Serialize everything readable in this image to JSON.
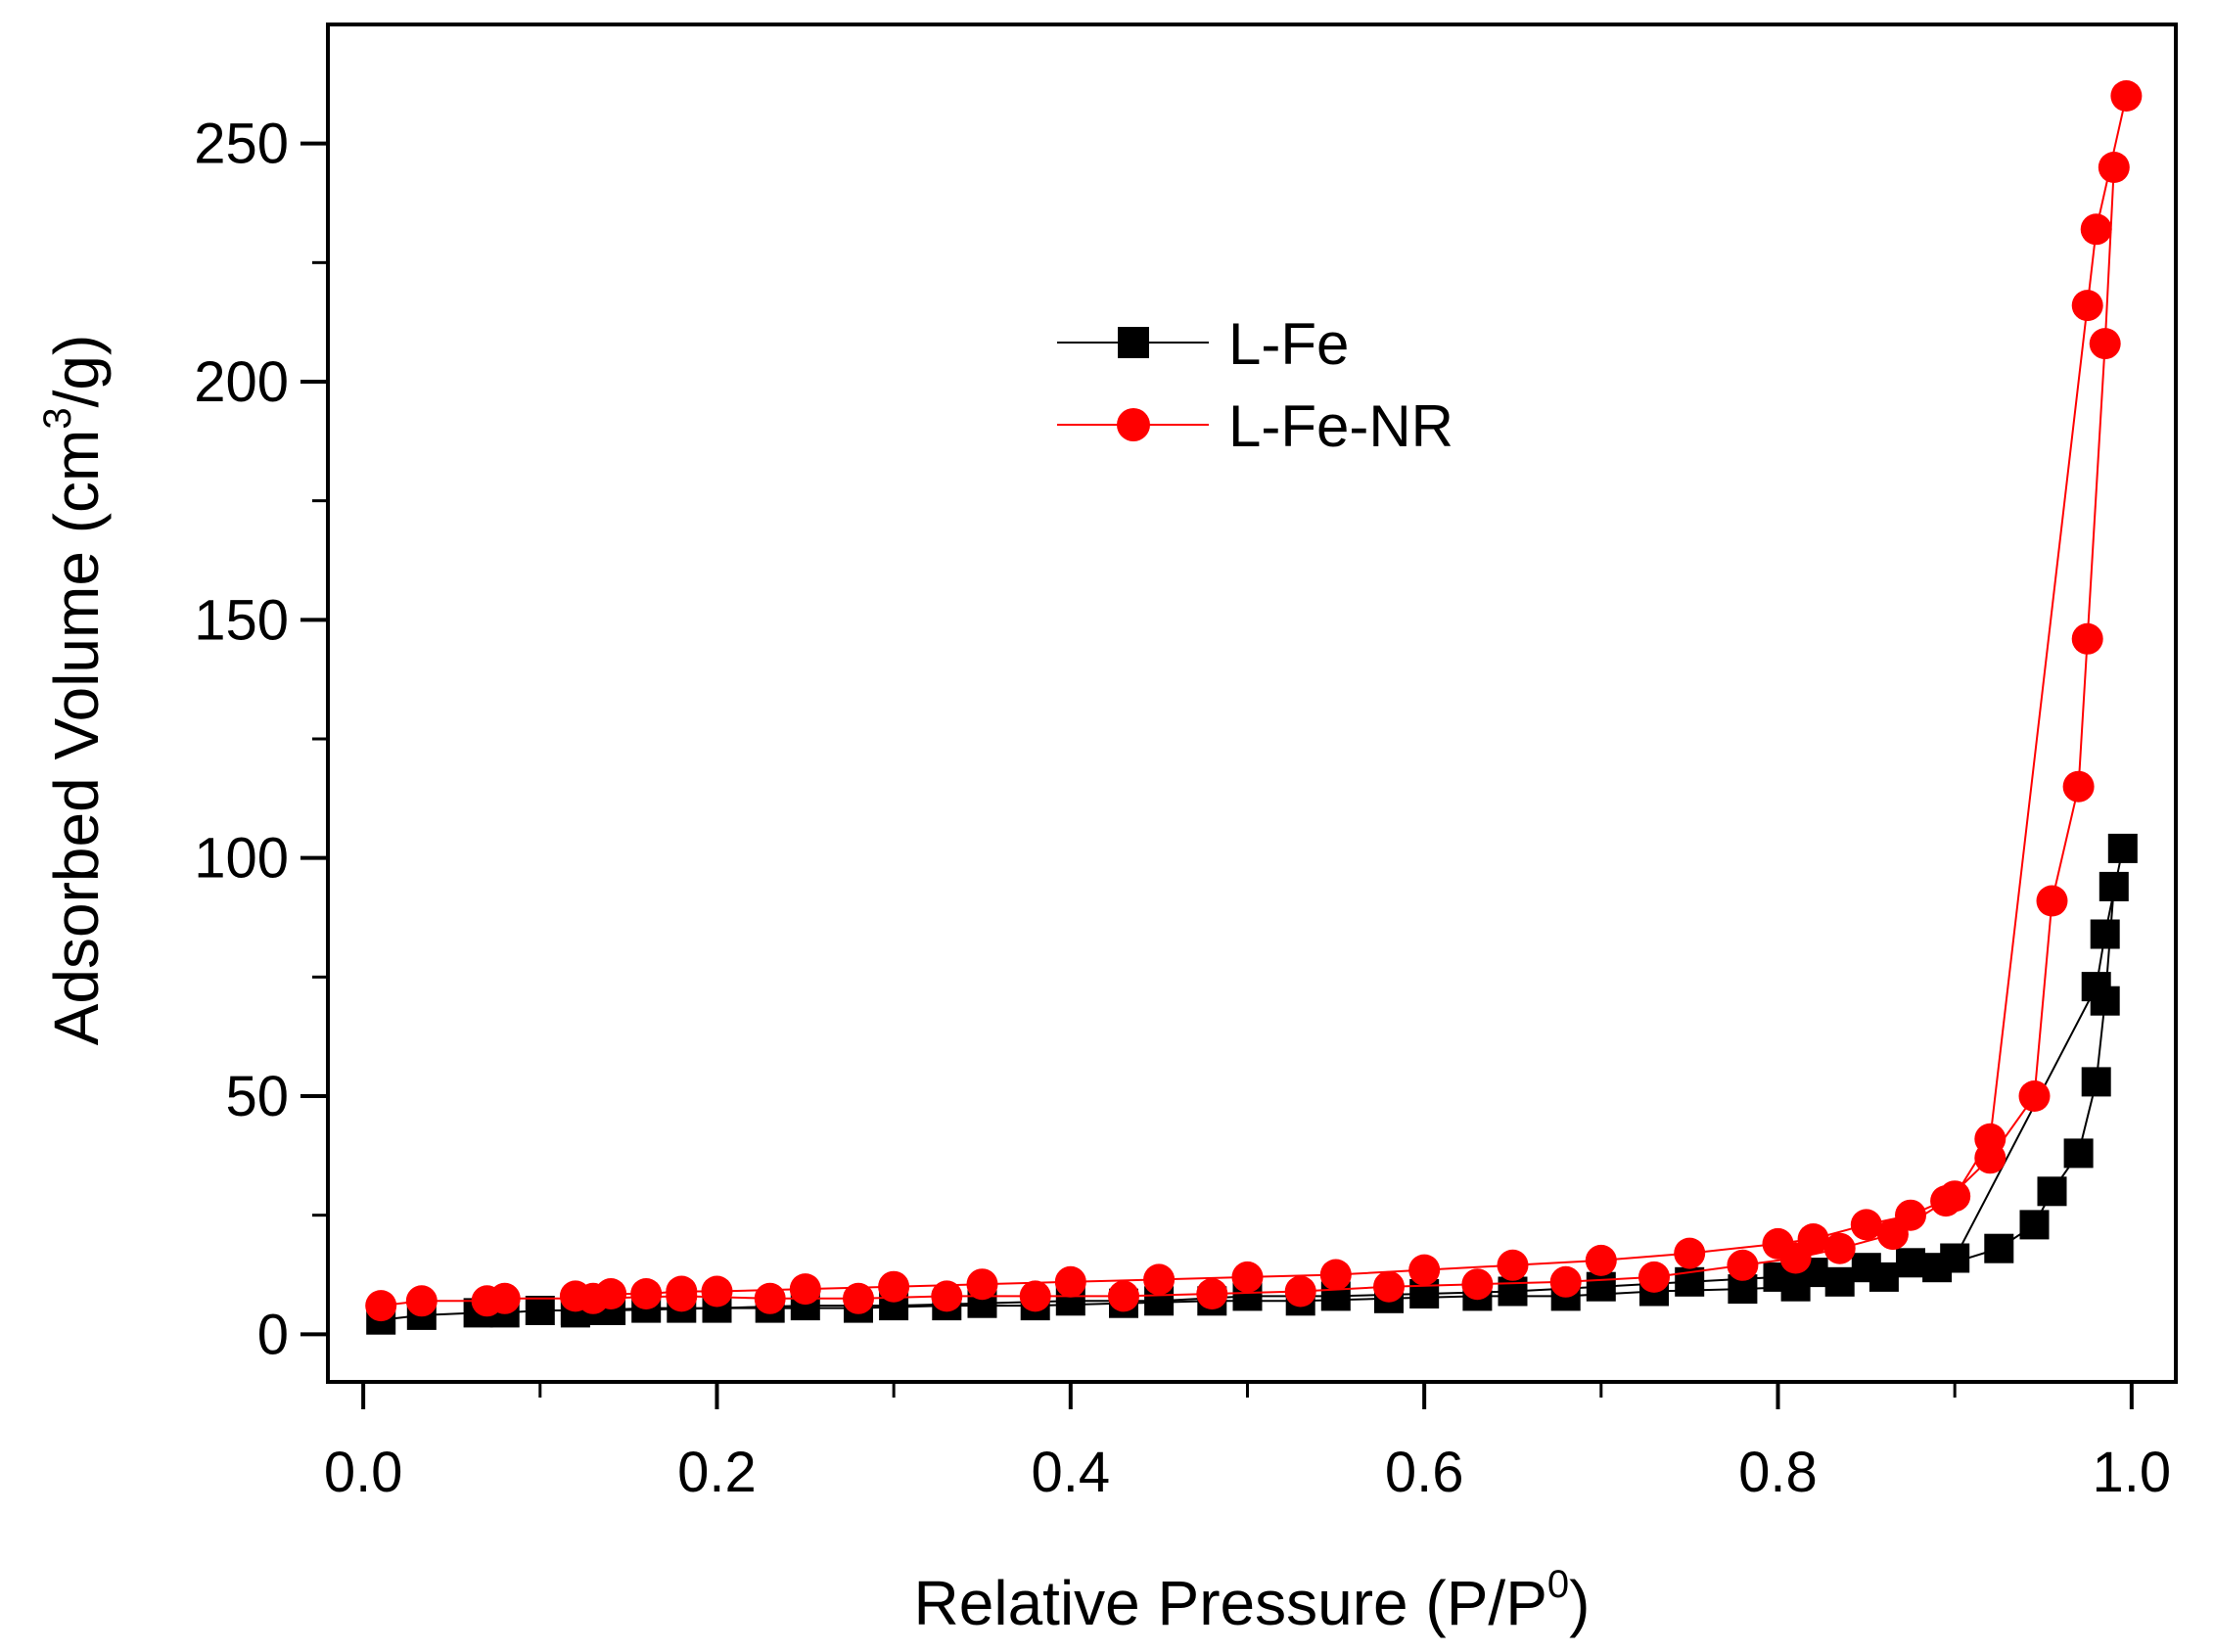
{
  "chart_data": {
    "type": "scatter",
    "title": "",
    "xlabel": "Relative Pressure (P/P",
    "xlabel_sup": "0",
    "xlabel_suffix": ")",
    "ylabel": "Adsorbed Volume (cm",
    "ylabel_sup": "3",
    "ylabel_suffix": "/g)",
    "xlim": [
      -0.02,
      1.025
    ],
    "ylim": [
      -10,
      275
    ],
    "xticks": [
      0.0,
      0.2,
      0.4,
      0.6,
      0.8,
      1.0
    ],
    "xtick_labels": [
      "0.0",
      "0.2",
      "0.4",
      "0.6",
      "0.8",
      "1.0"
    ],
    "yticks": [
      0,
      50,
      100,
      150,
      200,
      250
    ],
    "ytick_labels": [
      "0",
      "50",
      "100",
      "150",
      "200",
      "250"
    ],
    "legend_position": "upper-center",
    "series": [
      {
        "name": "L-Fe",
        "color": "#000000",
        "marker": "square",
        "adsorption": [
          [
            0.01,
            3
          ],
          [
            0.033,
            4
          ],
          [
            0.065,
            4.5
          ],
          [
            0.08,
            4.5
          ],
          [
            0.1,
            5
          ],
          [
            0.12,
            5
          ],
          [
            0.13,
            5
          ],
          [
            0.16,
            5.5
          ],
          [
            0.18,
            5.5
          ],
          [
            0.23,
            5.5
          ],
          [
            0.28,
            5.5
          ],
          [
            0.33,
            6
          ],
          [
            0.38,
            6
          ],
          [
            0.43,
            6.5
          ],
          [
            0.48,
            7
          ],
          [
            0.53,
            7
          ],
          [
            0.58,
            7.5
          ],
          [
            0.63,
            8
          ],
          [
            0.68,
            8
          ],
          [
            0.73,
            9
          ],
          [
            0.78,
            9.5
          ],
          [
            0.81,
            10
          ],
          [
            0.835,
            11
          ],
          [
            0.86,
            12
          ],
          [
            0.89,
            14
          ],
          [
            0.925,
            18
          ],
          [
            0.945,
            23
          ],
          [
            0.955,
            30
          ],
          [
            0.97,
            38
          ],
          [
            0.98,
            53
          ],
          [
            0.985,
            70
          ],
          [
            0.99,
            94
          ]
        ],
        "desorption": [
          [
            0.995,
            102
          ],
          [
            0.985,
            84
          ],
          [
            0.98,
            73
          ],
          [
            0.9,
            16
          ],
          [
            0.875,
            15
          ],
          [
            0.85,
            14
          ],
          [
            0.82,
            13
          ],
          [
            0.8,
            12
          ],
          [
            0.75,
            11
          ],
          [
            0.7,
            10
          ],
          [
            0.65,
            9
          ],
          [
            0.6,
            8.5
          ],
          [
            0.55,
            8
          ],
          [
            0.5,
            8
          ],
          [
            0.45,
            7
          ],
          [
            0.4,
            7
          ],
          [
            0.35,
            6.5
          ],
          [
            0.3,
            6
          ],
          [
            0.25,
            6
          ],
          [
            0.2,
            5.5
          ],
          [
            0.14,
            5
          ],
          [
            0.12,
            4.5
          ]
        ]
      },
      {
        "name": "L-Fe-NR",
        "color": "#ff0000",
        "marker": "circle",
        "adsorption": [
          [
            0.01,
            6
          ],
          [
            0.033,
            7
          ],
          [
            0.07,
            7
          ],
          [
            0.08,
            7.5
          ],
          [
            0.13,
            7.5
          ],
          [
            0.18,
            8
          ],
          [
            0.23,
            7.5
          ],
          [
            0.28,
            7.5
          ],
          [
            0.33,
            8
          ],
          [
            0.38,
            8
          ],
          [
            0.43,
            8
          ],
          [
            0.48,
            8.5
          ],
          [
            0.53,
            9
          ],
          [
            0.58,
            10
          ],
          [
            0.63,
            10.5
          ],
          [
            0.68,
            11
          ],
          [
            0.73,
            12
          ],
          [
            0.78,
            14.5
          ],
          [
            0.81,
            16
          ],
          [
            0.835,
            18
          ],
          [
            0.865,
            21
          ],
          [
            0.895,
            28
          ],
          [
            0.92,
            37
          ],
          [
            0.945,
            50
          ],
          [
            0.955,
            91
          ],
          [
            0.97,
            115
          ],
          [
            0.975,
            146
          ],
          [
            0.985,
            208
          ],
          [
            0.99,
            245
          ]
        ],
        "desorption": [
          [
            0.997,
            260
          ],
          [
            0.98,
            232
          ],
          [
            0.975,
            216
          ],
          [
            0.92,
            41
          ],
          [
            0.9,
            29
          ],
          [
            0.875,
            25
          ],
          [
            0.85,
            23
          ],
          [
            0.82,
            20
          ],
          [
            0.8,
            19
          ],
          [
            0.75,
            17
          ],
          [
            0.7,
            15.5
          ],
          [
            0.65,
            14.5
          ],
          [
            0.6,
            13.5
          ],
          [
            0.55,
            12.5
          ],
          [
            0.5,
            12
          ],
          [
            0.45,
            11.5
          ],
          [
            0.4,
            11
          ],
          [
            0.35,
            10.5
          ],
          [
            0.3,
            10
          ],
          [
            0.25,
            9.5
          ],
          [
            0.2,
            9
          ],
          [
            0.18,
            9
          ],
          [
            0.16,
            8.5
          ],
          [
            0.14,
            8.5
          ],
          [
            0.12,
            8
          ]
        ]
      }
    ]
  }
}
